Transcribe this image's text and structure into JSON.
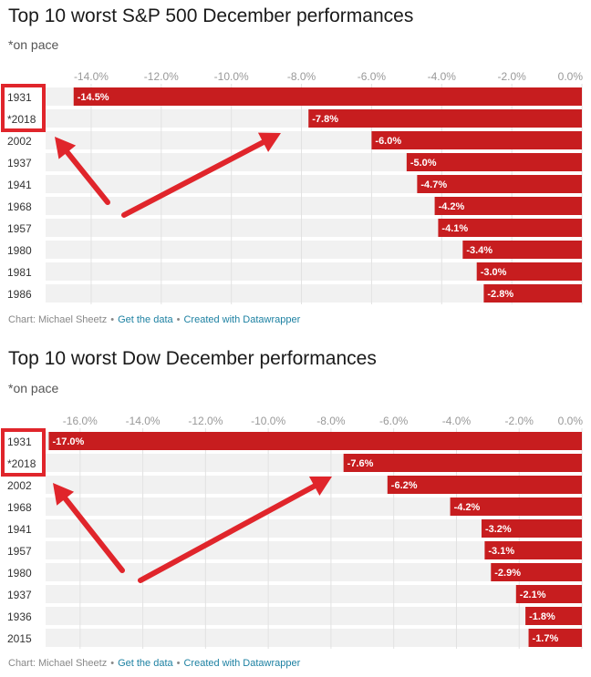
{
  "chart_data": [
    {
      "type": "bar",
      "orientation": "horizontal",
      "title": "Top 10 worst S&P 500 December performances",
      "subtitle": "*on pace",
      "categories": [
        "1931",
        "*2018",
        "2002",
        "1937",
        "1941",
        "1968",
        "1957",
        "1980",
        "1981",
        "1986"
      ],
      "values": [
        -14.5,
        -7.8,
        -6.0,
        -5.0,
        -4.7,
        -4.2,
        -4.1,
        -3.4,
        -3.0,
        -2.8
      ],
      "value_labels": [
        "-14.5%",
        "-7.8%",
        "-6.0%",
        "-5.0%",
        "-4.7%",
        "-4.2%",
        "-4.1%",
        "-3.4%",
        "-3.0%",
        "-2.8%"
      ],
      "ticks": [
        -14,
        -12,
        -10,
        -8,
        -6,
        -4,
        -2,
        0
      ],
      "tick_labels": [
        "-14.0%",
        "-12.0%",
        "-10.0%",
        "-8.0%",
        "-6.0%",
        "-4.0%",
        "-2.0%",
        "0.0%"
      ],
      "xlim": [
        -15.3,
        0
      ],
      "x_axis_position": "top",
      "grid": true,
      "bar_color": "#c71d1f",
      "annotations": [
        "red box around 1931 and *2018 labels",
        "red arrows pointing to the 1931 and *2018 labels"
      ],
      "footer": {
        "source": "Chart: Michael Sheetz",
        "get_data": "Get the data",
        "created_with": "Created with Datawrapper"
      }
    },
    {
      "type": "bar",
      "orientation": "horizontal",
      "title": "Top 10 worst Dow December performances",
      "subtitle": "*on pace",
      "categories": [
        "1931",
        "*2018",
        "2002",
        "1968",
        "1941",
        "1957",
        "1980",
        "1937",
        "1936",
        "2015"
      ],
      "values": [
        -17.0,
        -7.6,
        -6.2,
        -4.2,
        -3.2,
        -3.1,
        -2.9,
        -2.1,
        -1.8,
        -1.7
      ],
      "value_labels": [
        "-17.0%",
        "-7.6%",
        "-6.2%",
        "-4.2%",
        "-3.2%",
        "-3.1%",
        "-2.9%",
        "-2.1%",
        "-1.8%",
        "-1.7%"
      ],
      "ticks": [
        -16,
        -14,
        -12,
        -10,
        -8,
        -6,
        -4,
        -2,
        0
      ],
      "tick_labels": [
        "-16.0%",
        "-14.0%",
        "-12.0%",
        "-10.0%",
        "-8.0%",
        "-6.0%",
        "-4.0%",
        "-2.0%",
        "0.0%"
      ],
      "xlim": [
        -17.1,
        0
      ],
      "x_axis_position": "top",
      "grid": true,
      "bar_color": "#c71d1f",
      "annotations": [
        "red box around 1931 and *2018 labels",
        "red arrows pointing to the 1931 and *2018 labels"
      ],
      "footer": {
        "source": "Chart: Michael Sheetz",
        "get_data": "Get the data",
        "created_with": "Created with Datawrapper"
      }
    }
  ]
}
